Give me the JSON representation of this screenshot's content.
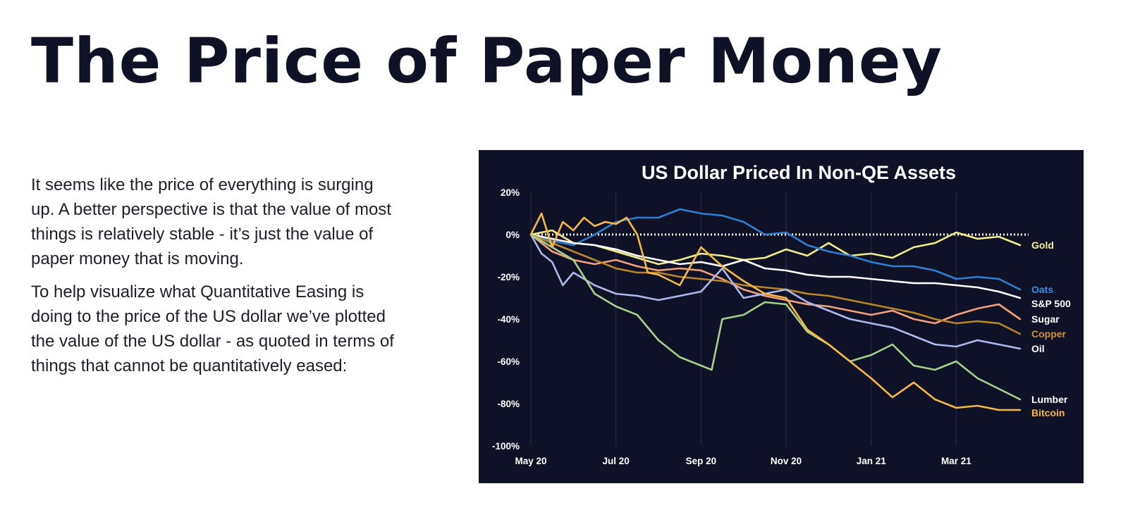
{
  "slide": {
    "title": "The Price of Paper Money",
    "paragraphs": [
      "It seems like the price of everything is surging up.  A better perspective is that the value of most things is relatively stable - it’s just the value of paper money that is moving.",
      "To help visualize what Quantitative Easing is doing to the price of the US dollar we’ve plotted the value of the US dollar - as quoted in terms of things that cannot be quantitatively eased:"
    ]
  },
  "chart_data": {
    "type": "line",
    "title": "US Dollar Priced In Non-QE Assets",
    "xlabel": "",
    "ylabel": "",
    "x_ticks": [
      {
        "label": "May 20",
        "t": 0
      },
      {
        "label": "Jul 20",
        "t": 2
      },
      {
        "label": "Sep 20",
        "t": 4
      },
      {
        "label": "Nov 20",
        "t": 6
      },
      {
        "label": "Jan 21",
        "t": 8
      },
      {
        "label": "Mar 21",
        "t": 10
      }
    ],
    "x_range": [
      0,
      11.7
    ],
    "ylim": [
      -100,
      20
    ],
    "y_ticks": [
      20,
      0,
      -20,
      -40,
      -60,
      -80,
      -100
    ],
    "y_tick_labels": [
      "20%",
      "0%",
      "-20%",
      "-40%",
      "-60%",
      "-80%",
      "-100%"
    ],
    "baseline": 0,
    "grid": "vertical",
    "series": [
      {
        "name": "Gold",
        "color": "#f2ec8a",
        "label_color": "#f5f0a0",
        "x": [
          0,
          0.5,
          1,
          1.5,
          2,
          2.5,
          3,
          3.5,
          4,
          4.5,
          5,
          5.5,
          6,
          6.5,
          7,
          7.5,
          8,
          8.5,
          9,
          9.5,
          10,
          10.5,
          11,
          11.5
        ],
        "values": [
          0,
          2,
          -4,
          -5,
          -8,
          -11,
          -14,
          -12,
          -9,
          -10,
          -12,
          -11,
          -7,
          -10,
          -4,
          -10,
          -9,
          -11,
          -6,
          -4,
          1,
          -2,
          -1,
          -5
        ]
      },
      {
        "name": "Oats",
        "color": "#2e7fd4",
        "label_color": "#3a8fe6",
        "x": [
          0,
          0.5,
          1,
          1.5,
          2,
          2.5,
          3,
          3.5,
          4,
          4.5,
          5,
          5.5,
          6,
          6.5,
          7,
          7.5,
          8,
          8.5,
          9,
          9.5,
          10,
          10.5,
          11,
          11.5
        ],
        "values": [
          0,
          -3,
          -5,
          0,
          6,
          8,
          8,
          12,
          10,
          9,
          6,
          0,
          1,
          -5,
          -8,
          -10,
          -13,
          -15,
          -15,
          -17,
          -21,
          -20,
          -21,
          -26
        ]
      },
      {
        "name": "S&P 500",
        "color": "#ffffff",
        "label_color": "#ffffff",
        "x": [
          0,
          0.5,
          1,
          1.5,
          2,
          2.5,
          3,
          3.5,
          4,
          4.5,
          5,
          5.5,
          6,
          6.5,
          7,
          7.5,
          8,
          8.5,
          9,
          9.5,
          10,
          10.5,
          11,
          11.5
        ],
        "values": [
          0,
          -2,
          -4,
          -5,
          -7,
          -10,
          -12,
          -14,
          -13,
          -15,
          -12,
          -16,
          -17,
          -19,
          -20,
          -20,
          -21,
          -22,
          -23,
          -23,
          -24,
          -25,
          -27,
          -30
        ]
      },
      {
        "name": "Sugar",
        "color": "#f2a37e",
        "label_color": "#ffffff",
        "x": [
          0,
          0.5,
          1,
          1.5,
          2,
          2.5,
          3,
          3.5,
          4,
          4.5,
          5,
          5.5,
          6,
          6.5,
          7,
          7.5,
          8,
          8.5,
          9,
          9.5,
          10,
          10.5,
          11,
          11.5
        ],
        "values": [
          0,
          -8,
          -12,
          -14,
          -12,
          -15,
          -17,
          -16,
          -17,
          -21,
          -26,
          -29,
          -31,
          -33,
          -34,
          -36,
          -38,
          -36,
          -40,
          -42,
          -38,
          -35,
          -33,
          -40
        ]
      },
      {
        "name": "Copper",
        "color": "#b8862a",
        "label_color": "#c9913a",
        "x": [
          0,
          0.5,
          1,
          1.5,
          2,
          2.5,
          3,
          3.5,
          4,
          4.5,
          5,
          5.5,
          6,
          6.5,
          7,
          7.5,
          8,
          8.5,
          9,
          9.5,
          10,
          10.5,
          11,
          11.5
        ],
        "values": [
          0,
          -4,
          -8,
          -12,
          -16,
          -18,
          -18,
          -20,
          -21,
          -22,
          -24,
          -25,
          -26,
          -28,
          -29,
          -31,
          -33,
          -35,
          -37,
          -40,
          -42,
          -41,
          -42,
          -47
        ]
      },
      {
        "name": "Oil",
        "color": "#aeb9ec",
        "label_color": "#ffffff",
        "x": [
          0,
          0.25,
          0.5,
          0.75,
          1,
          1.5,
          2,
          2.5,
          3,
          3.5,
          4,
          4.5,
          5,
          5.5,
          6,
          6.5,
          7,
          7.5,
          8,
          8.5,
          9,
          9.5,
          10,
          10.5,
          11,
          11.5
        ],
        "values": [
          0,
          -9,
          -13,
          -24,
          -18,
          -24,
          -28,
          -29,
          -31,
          -29,
          -27,
          -16,
          -30,
          -28,
          -26,
          -32,
          -36,
          -40,
          -42,
          -44,
          -48,
          -52,
          -53,
          -50,
          -52,
          -54
        ]
      },
      {
        "name": "Lumber",
        "color": "#a6d08d",
        "label_color": "#ffffff",
        "x": [
          0,
          0.5,
          1,
          1.5,
          2,
          2.5,
          3,
          3.5,
          4,
          4.25,
          4.5,
          5,
          5.5,
          6,
          6.5,
          7,
          7.5,
          8,
          8.5,
          9,
          9.5,
          10,
          10.5,
          11,
          11.5
        ],
        "values": [
          0,
          -6,
          -12,
          -28,
          -34,
          -38,
          -50,
          -58,
          -62,
          -64,
          -40,
          -38,
          -32,
          -33,
          -46,
          -52,
          -60,
          -57,
          -52,
          -62,
          -64,
          -60,
          -68,
          -73,
          -78
        ]
      },
      {
        "name": "Bitcoin",
        "color": "#f7b945",
        "label_color": "#f7b945",
        "x": [
          0,
          0.25,
          0.5,
          0.75,
          1,
          1.25,
          1.5,
          1.75,
          2,
          2.25,
          2.5,
          2.75,
          3,
          3.5,
          4,
          4.5,
          5,
          5.5,
          6,
          6.5,
          7,
          7.5,
          8,
          8.5,
          9,
          9.5,
          10,
          10.5,
          11,
          11.5
        ],
        "values": [
          0,
          10,
          -6,
          6,
          2,
          8,
          4,
          6,
          5,
          8,
          0,
          -18,
          -19,
          -24,
          -6,
          -15,
          -22,
          -28,
          -30,
          -45,
          -52,
          -60,
          -68,
          -77,
          -70,
          -78,
          -82,
          -81,
          -83,
          -83
        ]
      }
    ]
  }
}
